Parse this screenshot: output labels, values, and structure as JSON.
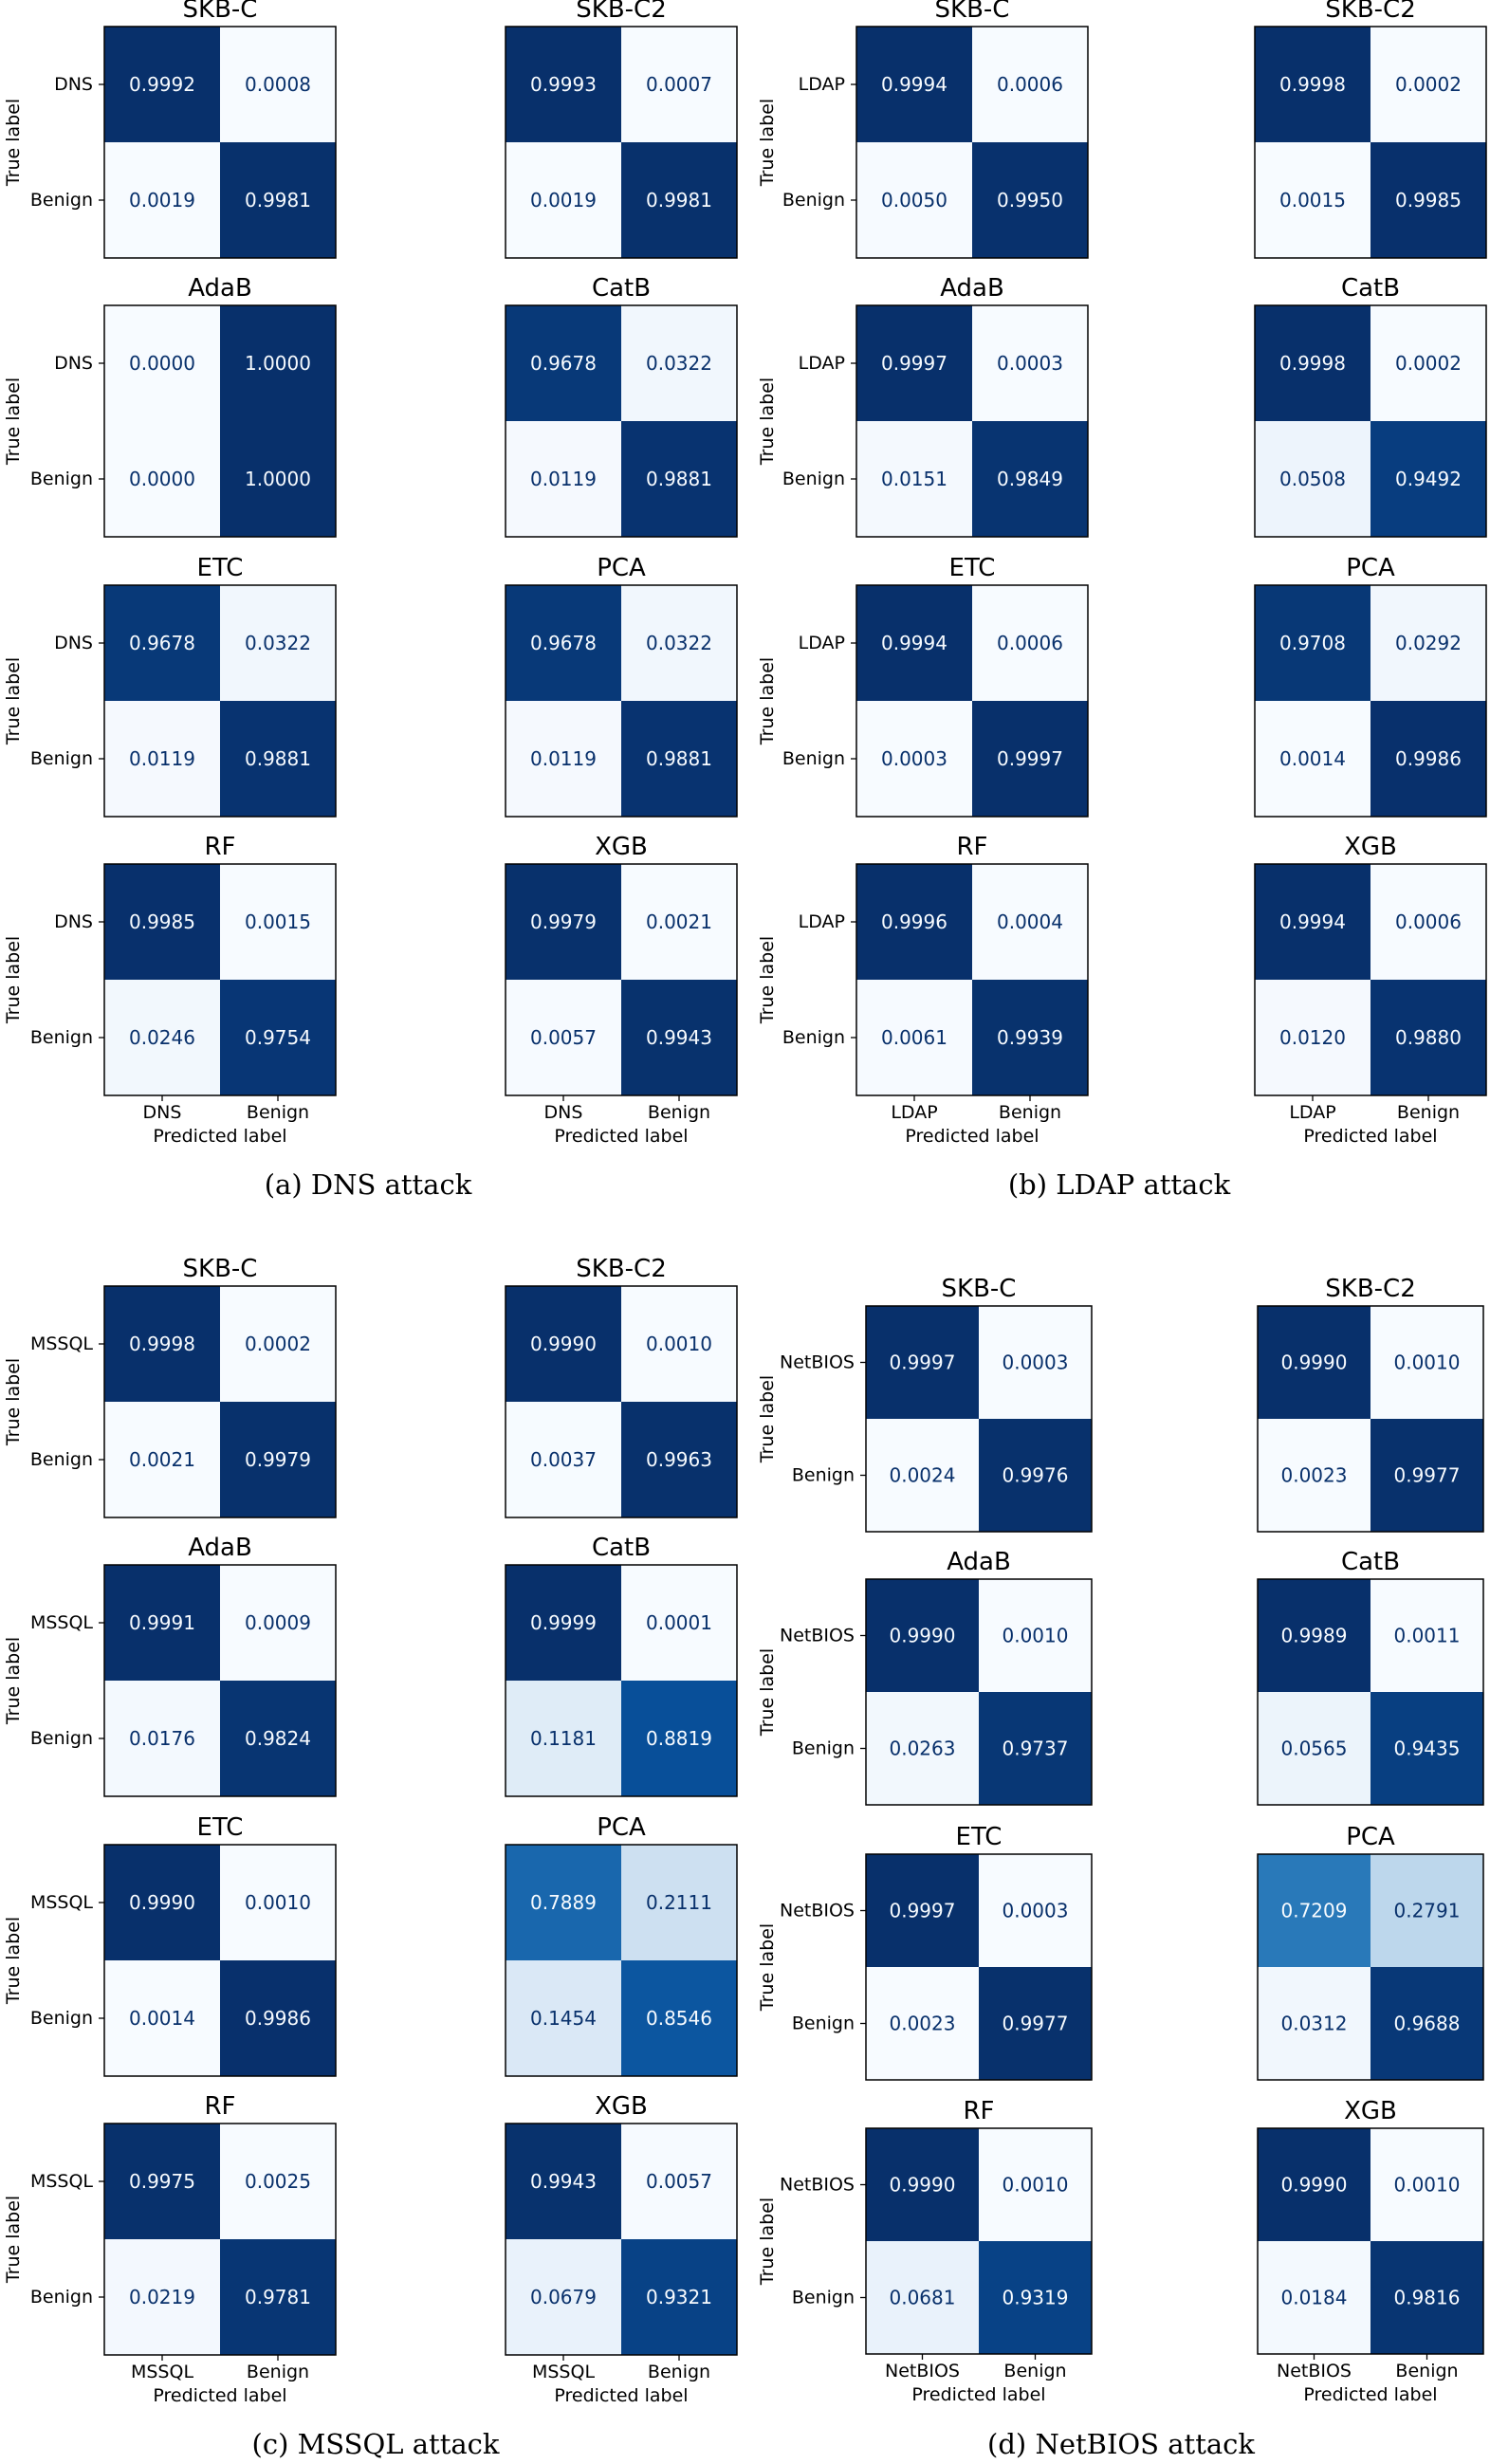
{
  "captions": [
    "(a) DNS attack",
    "(b) LDAP attack",
    "(c) MSSQL attack",
    "(d) NetBIOS attack"
  ],
  "axis": {
    "true_label": "True label",
    "predicted_label": "Predicted label"
  },
  "chart_data": [
    {
      "type": "heatmap",
      "panel": "a",
      "title": "SKB-C",
      "rows": [
        "DNS",
        "Benign"
      ],
      "cols": [
        "DNS",
        "Benign"
      ],
      "values": [
        [
          0.9992,
          0.0008
        ],
        [
          0.0019,
          0.9981
        ]
      ]
    },
    {
      "type": "heatmap",
      "panel": "a",
      "title": "SKB-C2",
      "rows": [
        "DNS",
        "Benign"
      ],
      "cols": [
        "DNS",
        "Benign"
      ],
      "values": [
        [
          0.9993,
          0.0007
        ],
        [
          0.0019,
          0.9981
        ]
      ]
    },
    {
      "type": "heatmap",
      "panel": "a",
      "title": "AdaB",
      "rows": [
        "DNS",
        "Benign"
      ],
      "cols": [
        "DNS",
        "Benign"
      ],
      "values": [
        [
          0.0,
          1.0
        ],
        [
          0.0,
          1.0
        ]
      ]
    },
    {
      "type": "heatmap",
      "panel": "a",
      "title": "CatB",
      "rows": [
        "DNS",
        "Benign"
      ],
      "cols": [
        "DNS",
        "Benign"
      ],
      "values": [
        [
          0.9678,
          0.0322
        ],
        [
          0.0119,
          0.9881
        ]
      ]
    },
    {
      "type": "heatmap",
      "panel": "a",
      "title": "ETC",
      "rows": [
        "DNS",
        "Benign"
      ],
      "cols": [
        "DNS",
        "Benign"
      ],
      "values": [
        [
          0.9678,
          0.0322
        ],
        [
          0.0119,
          0.9881
        ]
      ]
    },
    {
      "type": "heatmap",
      "panel": "a",
      "title": "PCA",
      "rows": [
        "DNS",
        "Benign"
      ],
      "cols": [
        "DNS",
        "Benign"
      ],
      "values": [
        [
          0.9678,
          0.0322
        ],
        [
          0.0119,
          0.9881
        ]
      ]
    },
    {
      "type": "heatmap",
      "panel": "a",
      "title": "RF",
      "rows": [
        "DNS",
        "Benign"
      ],
      "cols": [
        "DNS",
        "Benign"
      ],
      "values": [
        [
          0.9985,
          0.0015
        ],
        [
          0.0246,
          0.9754
        ]
      ]
    },
    {
      "type": "heatmap",
      "panel": "a",
      "title": "XGB",
      "rows": [
        "DNS",
        "Benign"
      ],
      "cols": [
        "DNS",
        "Benign"
      ],
      "values": [
        [
          0.9979,
          0.0021
        ],
        [
          0.0057,
          0.9943
        ]
      ]
    },
    {
      "type": "heatmap",
      "panel": "b",
      "title": "SKB-C",
      "rows": [
        "LDAP",
        "Benign"
      ],
      "cols": [
        "LDAP",
        "Benign"
      ],
      "values": [
        [
          0.9994,
          0.0006
        ],
        [
          0.005,
          0.995
        ]
      ]
    },
    {
      "type": "heatmap",
      "panel": "b",
      "title": "SKB-C2",
      "rows": [
        "LDAP",
        "Benign"
      ],
      "cols": [
        "LDAP",
        "Benign"
      ],
      "values": [
        [
          0.9998,
          0.0002
        ],
        [
          0.0015,
          0.9985
        ]
      ]
    },
    {
      "type": "heatmap",
      "panel": "b",
      "title": "AdaB",
      "rows": [
        "LDAP",
        "Benign"
      ],
      "cols": [
        "LDAP",
        "Benign"
      ],
      "values": [
        [
          0.9997,
          0.0003
        ],
        [
          0.0151,
          0.9849
        ]
      ]
    },
    {
      "type": "heatmap",
      "panel": "b",
      "title": "CatB",
      "rows": [
        "LDAP",
        "Benign"
      ],
      "cols": [
        "LDAP",
        "Benign"
      ],
      "values": [
        [
          0.9998,
          0.0002
        ],
        [
          0.0508,
          0.9492
        ]
      ]
    },
    {
      "type": "heatmap",
      "panel": "b",
      "title": "ETC",
      "rows": [
        "LDAP",
        "Benign"
      ],
      "cols": [
        "LDAP",
        "Benign"
      ],
      "values": [
        [
          0.9994,
          0.0006
        ],
        [
          0.0003,
          0.9997
        ]
      ]
    },
    {
      "type": "heatmap",
      "panel": "b",
      "title": "PCA",
      "rows": [
        "LDAP",
        "Benign"
      ],
      "cols": [
        "LDAP",
        "Benign"
      ],
      "values": [
        [
          0.9708,
          0.0292
        ],
        [
          0.0014,
          0.9986
        ]
      ]
    },
    {
      "type": "heatmap",
      "panel": "b",
      "title": "RF",
      "rows": [
        "LDAP",
        "Benign"
      ],
      "cols": [
        "LDAP",
        "Benign"
      ],
      "values": [
        [
          0.9996,
          0.0004
        ],
        [
          0.0061,
          0.9939
        ]
      ]
    },
    {
      "type": "heatmap",
      "panel": "b",
      "title": "XGB",
      "rows": [
        "LDAP",
        "Benign"
      ],
      "cols": [
        "LDAP",
        "Benign"
      ],
      "values": [
        [
          0.9994,
          0.0006
        ],
        [
          0.012,
          0.988
        ]
      ]
    },
    {
      "type": "heatmap",
      "panel": "c",
      "title": "SKB-C",
      "rows": [
        "MSSQL",
        "Benign"
      ],
      "cols": [
        "MSSQL",
        "Benign"
      ],
      "values": [
        [
          0.9998,
          0.0002
        ],
        [
          0.0021,
          0.9979
        ]
      ]
    },
    {
      "type": "heatmap",
      "panel": "c",
      "title": "SKB-C2",
      "rows": [
        "MSSQL",
        "Benign"
      ],
      "cols": [
        "MSSQL",
        "Benign"
      ],
      "values": [
        [
          0.999,
          0.001
        ],
        [
          0.0037,
          0.9963
        ]
      ]
    },
    {
      "type": "heatmap",
      "panel": "c",
      "title": "AdaB",
      "rows": [
        "MSSQL",
        "Benign"
      ],
      "cols": [
        "MSSQL",
        "Benign"
      ],
      "values": [
        [
          0.9991,
          0.0009
        ],
        [
          0.0176,
          0.9824
        ]
      ]
    },
    {
      "type": "heatmap",
      "panel": "c",
      "title": "CatB",
      "rows": [
        "MSSQL",
        "Benign"
      ],
      "cols": [
        "MSSQL",
        "Benign"
      ],
      "values": [
        [
          0.9999,
          0.0001
        ],
        [
          0.1181,
          0.8819
        ]
      ]
    },
    {
      "type": "heatmap",
      "panel": "c",
      "title": "ETC",
      "rows": [
        "MSSQL",
        "Benign"
      ],
      "cols": [
        "MSSQL",
        "Benign"
      ],
      "values": [
        [
          0.999,
          0.001
        ],
        [
          0.0014,
          0.9986
        ]
      ]
    },
    {
      "type": "heatmap",
      "panel": "c",
      "title": "PCA",
      "rows": [
        "MSSQL",
        "Benign"
      ],
      "cols": [
        "MSSQL",
        "Benign"
      ],
      "values": [
        [
          0.7889,
          0.2111
        ],
        [
          0.1454,
          0.8546
        ]
      ]
    },
    {
      "type": "heatmap",
      "panel": "c",
      "title": "RF",
      "rows": [
        "MSSQL",
        "Benign"
      ],
      "cols": [
        "MSSQL",
        "Benign"
      ],
      "values": [
        [
          0.9975,
          0.0025
        ],
        [
          0.0219,
          0.9781
        ]
      ]
    },
    {
      "type": "heatmap",
      "panel": "c",
      "title": "XGB",
      "rows": [
        "MSSQL",
        "Benign"
      ],
      "cols": [
        "MSSQL",
        "Benign"
      ],
      "values": [
        [
          0.9943,
          0.0057
        ],
        [
          0.0679,
          0.9321
        ]
      ]
    },
    {
      "type": "heatmap",
      "panel": "d",
      "title": "SKB-C",
      "rows": [
        "NetBIOS",
        "Benign"
      ],
      "cols": [
        "NetBIOS",
        "Benign"
      ],
      "values": [
        [
          0.9997,
          0.0003
        ],
        [
          0.0024,
          0.9976
        ]
      ]
    },
    {
      "type": "heatmap",
      "panel": "d",
      "title": "SKB-C2",
      "rows": [
        "NetBIOS",
        "Benign"
      ],
      "cols": [
        "NetBIOS",
        "Benign"
      ],
      "values": [
        [
          0.999,
          0.001
        ],
        [
          0.0023,
          0.9977
        ]
      ]
    },
    {
      "type": "heatmap",
      "panel": "d",
      "title": "AdaB",
      "rows": [
        "NetBIOS",
        "Benign"
      ],
      "cols": [
        "NetBIOS",
        "Benign"
      ],
      "values": [
        [
          0.999,
          0.001
        ],
        [
          0.0263,
          0.9737
        ]
      ]
    },
    {
      "type": "heatmap",
      "panel": "d",
      "title": "CatB",
      "rows": [
        "NetBIOS",
        "Benign"
      ],
      "cols": [
        "NetBIOS",
        "Benign"
      ],
      "values": [
        [
          0.9989,
          0.0011
        ],
        [
          0.0565,
          0.9435
        ]
      ]
    },
    {
      "type": "heatmap",
      "panel": "d",
      "title": "ETC",
      "rows": [
        "NetBIOS",
        "Benign"
      ],
      "cols": [
        "NetBIOS",
        "Benign"
      ],
      "values": [
        [
          0.9997,
          0.0003
        ],
        [
          0.0023,
          0.9977
        ]
      ]
    },
    {
      "type": "heatmap",
      "panel": "d",
      "title": "PCA",
      "rows": [
        "NetBIOS",
        "Benign"
      ],
      "cols": [
        "NetBIOS",
        "Benign"
      ],
      "values": [
        [
          0.7209,
          0.2791
        ],
        [
          0.0312,
          0.9688
        ]
      ]
    },
    {
      "type": "heatmap",
      "panel": "d",
      "title": "RF",
      "rows": [
        "NetBIOS",
        "Benign"
      ],
      "cols": [
        "NetBIOS",
        "Benign"
      ],
      "values": [
        [
          0.999,
          0.001
        ],
        [
          0.0681,
          0.9319
        ]
      ]
    },
    {
      "type": "heatmap",
      "panel": "d",
      "title": "XGB",
      "rows": [
        "NetBIOS",
        "Benign"
      ],
      "cols": [
        "NetBIOS",
        "Benign"
      ],
      "values": [
        [
          0.999,
          0.001
        ],
        [
          0.0184,
          0.9816
        ]
      ]
    }
  ]
}
